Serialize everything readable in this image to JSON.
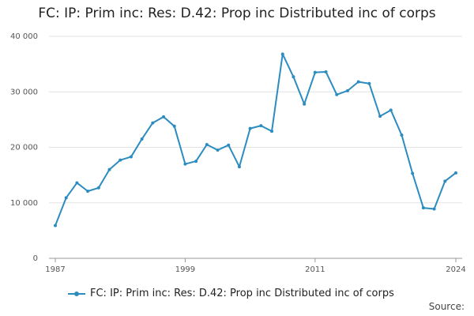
{
  "title": "FC: IP: Prim inc: Res: D.42: Prop inc Distributed inc of corps",
  "source_label": "Source:",
  "colors": {
    "series": "#2c8cc0",
    "grid": "#e3e3e3",
    "text": "#222222"
  },
  "chart_data": {
    "type": "line",
    "title": "FC: IP: Prim inc: Res: D.42: Prop inc Distributed inc of corps",
    "xlabel": "",
    "ylabel": "",
    "xlim": [
      1987,
      2024
    ],
    "ylim": [
      0,
      40000
    ],
    "x_ticks": [
      1987,
      1999,
      2011,
      2024
    ],
    "y_ticks": [
      0,
      10000,
      20000,
      30000,
      40000
    ],
    "y_tick_labels": [
      "0",
      "10 000",
      "20 000",
      "30 000",
      "40 000"
    ],
    "grid": true,
    "legend_position": "bottom",
    "series": [
      {
        "name": "FC: IP: Prim inc: Res: D.42: Prop inc Distributed inc of corps",
        "x": [
          1987,
          1988,
          1989,
          1990,
          1991,
          1992,
          1993,
          1994,
          1995,
          1996,
          1997,
          1998,
          1999,
          2000,
          2001,
          2002,
          2003,
          2004,
          2005,
          2006,
          2007,
          2008,
          2009,
          2010,
          2011,
          2012,
          2013,
          2014,
          2015,
          2016,
          2017,
          2018,
          2019,
          2020,
          2021,
          2022,
          2023,
          2024
        ],
        "values": [
          5900,
          10900,
          13600,
          12100,
          12700,
          16000,
          17700,
          18300,
          21500,
          24400,
          25500,
          23800,
          17000,
          17500,
          20500,
          19500,
          20400,
          16500,
          23400,
          23900,
          22900,
          36800,
          32700,
          27800,
          33500,
          33600,
          29500,
          30200,
          31800,
          31500,
          25600,
          26700,
          22200,
          15300,
          9100,
          8900,
          13900,
          15400
        ]
      }
    ]
  }
}
